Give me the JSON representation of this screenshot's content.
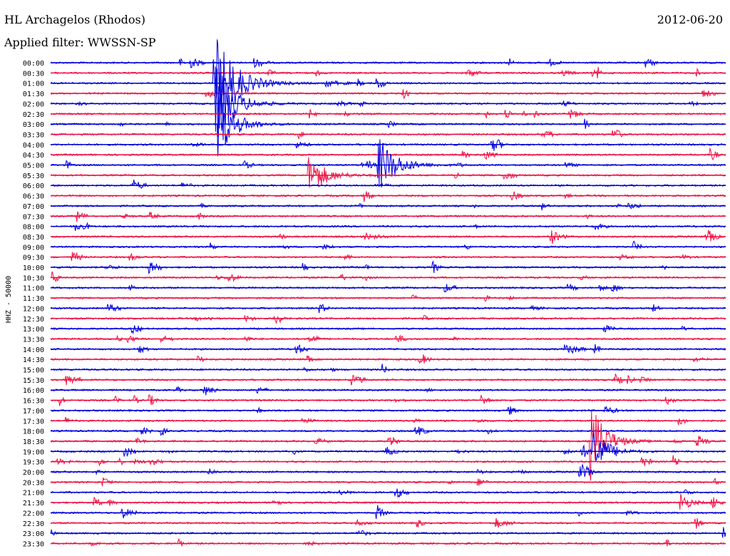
{
  "header": {
    "station": "HL Archagelos (Rhodos)",
    "date": "2012-06-20",
    "filter": "Applied filter: WWSSN-SP"
  },
  "chart_data": {
    "type": "line",
    "title": "HL Archagelos (Rhodos)",
    "subtitle": "Applied filter: WWSSN-SP",
    "date": "2012-06-20",
    "ylabel": "HHZ - 50000",
    "xlabel": "",
    "series": [],
    "row_labels": [
      "00:00",
      "00:30",
      "01:00",
      "01:30",
      "02:00",
      "02:30",
      "03:00",
      "03:30",
      "04:00",
      "04:30",
      "05:00",
      "05:30",
      "06:00",
      "06:30",
      "07:00",
      "07:30",
      "08:00",
      "08:30",
      "09:00",
      "09:30",
      "10:00",
      "10:30",
      "11:00",
      "11:30",
      "12:00",
      "12:30",
      "13:00",
      "13:30",
      "14:00",
      "14:30",
      "15:00",
      "15:30",
      "16:00",
      "16:30",
      "17:00",
      "17:30",
      "18:00",
      "18:30",
      "19:00",
      "19:30",
      "20:00",
      "20:30",
      "21:00",
      "21:30",
      "22:00",
      "22:30",
      "23:00",
      "23:30"
    ],
    "row_colors": [
      "#0000dd",
      "#ee1144"
    ],
    "grid": false,
    "events": [
      {
        "row": 2,
        "minute": 7.3,
        "amplitude": 70,
        "duration_min": 1.8
      },
      {
        "row": 4,
        "minute": 7.4,
        "amplitude": 55,
        "duration_min": 1.5
      },
      {
        "row": 6,
        "minute": 7.5,
        "amplitude": 45,
        "duration_min": 1.4
      },
      {
        "row": 10,
        "minute": 14.6,
        "amplitude": 38,
        "duration_min": 1.6
      },
      {
        "row": 11,
        "minute": 11.5,
        "amplitude": 26,
        "duration_min": 1.5
      },
      {
        "row": 37,
        "minute": 24.0,
        "amplitude": 55,
        "duration_min": 1.3
      },
      {
        "row": 38,
        "minute": 24.1,
        "amplitude": 40,
        "duration_min": 1.2
      },
      {
        "row": 43,
        "minute": 28.0,
        "amplitude": 14,
        "duration_min": 0.8
      }
    ]
  }
}
